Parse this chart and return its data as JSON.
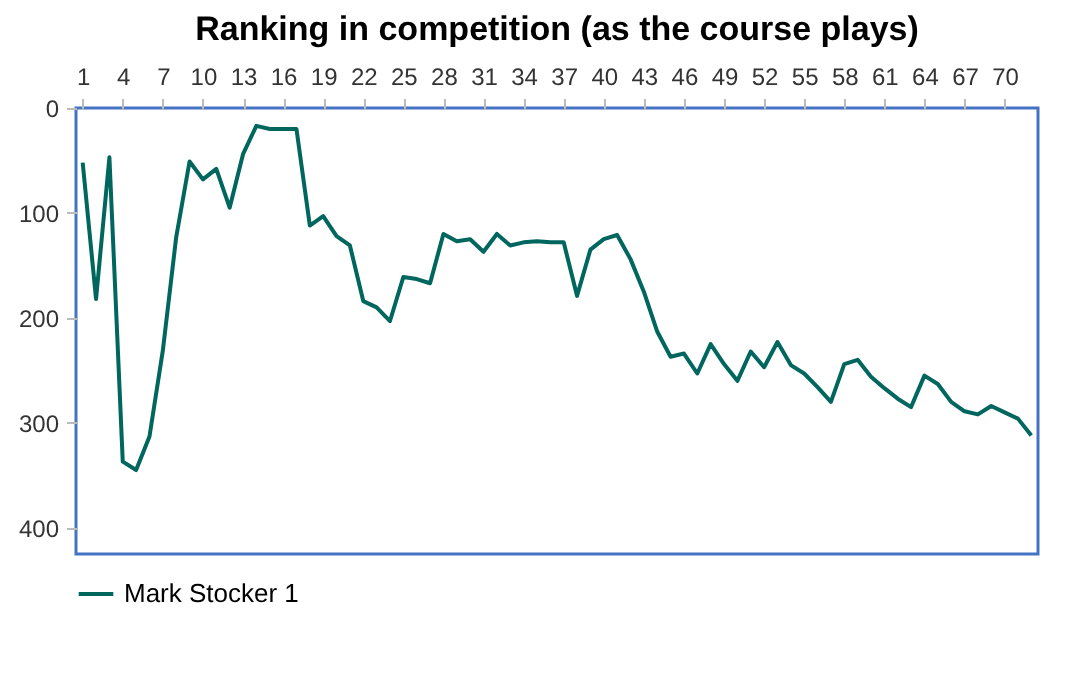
{
  "chart_data": {
    "type": "line",
    "title": "Ranking in competition (as the course plays)",
    "x": [
      1,
      2,
      3,
      4,
      5,
      6,
      7,
      8,
      9,
      10,
      11,
      12,
      13,
      14,
      15,
      16,
      17,
      18,
      19,
      20,
      21,
      22,
      23,
      24,
      25,
      26,
      27,
      28,
      29,
      30,
      31,
      32,
      33,
      34,
      35,
      36,
      37,
      38,
      39,
      40,
      41,
      42,
      43,
      44,
      45,
      46,
      47,
      48,
      49,
      50,
      51,
      52,
      53,
      54,
      55,
      56,
      57,
      58,
      59,
      60,
      61,
      62,
      63,
      64,
      65,
      66,
      67,
      68,
      69,
      70,
      71,
      72
    ],
    "series": [
      {
        "name": "Mark Stocker 1",
        "color": "#00665e",
        "values": [
          52,
          182,
          47,
          337,
          345,
          313,
          231,
          123,
          51,
          68,
          58,
          95,
          44,
          17,
          20,
          20,
          20,
          112,
          103,
          122,
          131,
          184,
          190,
          203,
          161,
          163,
          167,
          120,
          127,
          125,
          137,
          120,
          131,
          128,
          127,
          128,
          128,
          179,
          135,
          125,
          121,
          144,
          175,
          213,
          237,
          234,
          253,
          225,
          244,
          260,
          232,
          247,
          223,
          245,
          253,
          266,
          280,
          244,
          240,
          256,
          267,
          277,
          285,
          255,
          263,
          280,
          289,
          292,
          284,
          290,
          296,
          312
        ]
      }
    ],
    "xlim": [
      0.5,
      72.5
    ],
    "xticks": [
      1,
      4,
      7,
      10,
      13,
      16,
      19,
      22,
      25,
      28,
      31,
      34,
      37,
      40,
      43,
      46,
      49,
      52,
      55,
      58,
      61,
      64,
      67,
      70
    ],
    "ylim": [
      425,
      0
    ],
    "yticks": [
      0,
      100,
      200,
      300,
      400
    ],
    "legend": "bottom"
  }
}
